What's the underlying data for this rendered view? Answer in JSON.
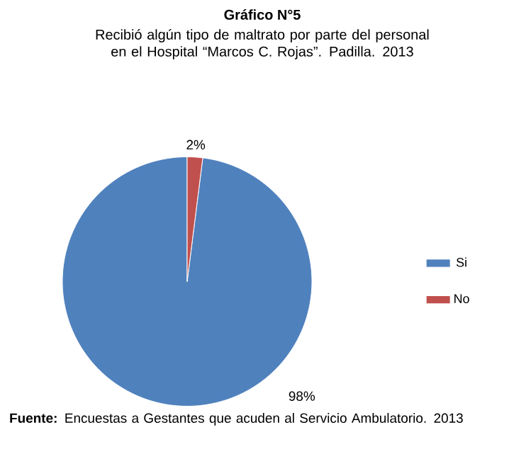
{
  "chart_data": {
    "type": "pie",
    "title": "Gráfico N°5",
    "subtitle": "Recibió algún tipo de maltrato por parte del personal en el Hospital “Marcos C. Rojas”. Padilla.  2013",
    "categories": [
      "Si",
      "No"
    ],
    "values": [
      98,
      2
    ],
    "colors": [
      "#4f81bd",
      "#c0504d"
    ],
    "value_labels": [
      "98%",
      "2%"
    ],
    "legend": "right",
    "annotations": [
      "**Fuente:** Encuestas a Gestantes que acuden al Servicio Ambulatorio. 2013"
    ]
  }
}
